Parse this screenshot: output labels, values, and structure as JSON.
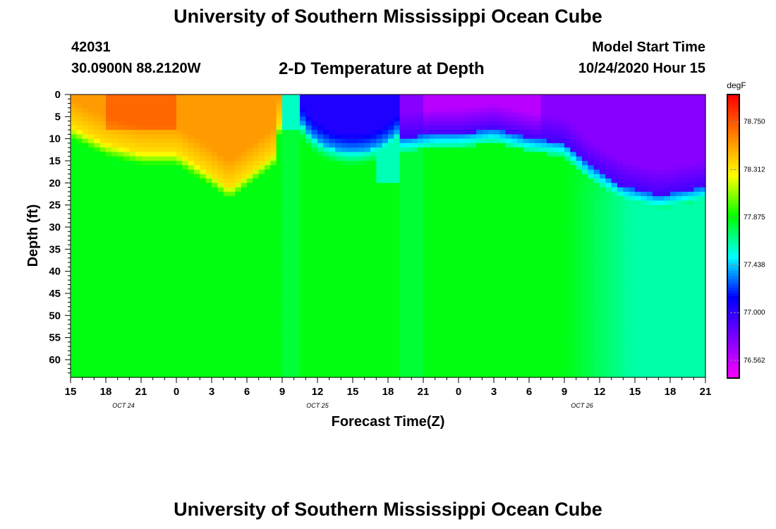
{
  "header": {
    "title": "University of Southern Mississippi Ocean Cube",
    "station_id": "42031",
    "station_coords": "30.0900N 88.2120W",
    "plot_title": "2-D Temperature at Depth",
    "model_start_label": "Model Start Time",
    "model_start_value": "10/24/2020 Hour 15"
  },
  "footer": {
    "title": "University of Southern Mississippi Ocean Cube"
  },
  "chart_data": {
    "type": "heatmap",
    "title": "2-D Temperature at Depth",
    "xlabel": "Forecast Time(Z)",
    "ylabel": "Depth (ft)",
    "x_tick_labels": [
      "15",
      "18",
      "21",
      "0",
      "3",
      "6",
      "9",
      "12",
      "15",
      "18",
      "21",
      "0",
      "3",
      "6",
      "9",
      "12",
      "15",
      "18",
      "21"
    ],
    "x_date_labels": [
      {
        "label": "OCT 24",
        "at_tick": 1.5
      },
      {
        "label": "OCT 25",
        "at_tick": 7
      },
      {
        "label": "OCT 26",
        "at_tick": 14.5
      }
    ],
    "x_range_hours": [
      0,
      54
    ],
    "y_tick_labels": [
      "0",
      "5",
      "10",
      "15",
      "20",
      "25",
      "30",
      "35",
      "40",
      "45",
      "50",
      "55",
      "60"
    ],
    "ylim": [
      0,
      64
    ],
    "y_inverted": true,
    "colorbar": {
      "unit": "degF",
      "tick_values": [
        78.75,
        78.312,
        77.875,
        77.438,
        77.0,
        76.562
      ],
      "tick_labels": [
        "78.750",
        "78.312",
        "77.875",
        "77.438",
        "77.000",
        "76.562"
      ],
      "range": [
        76.4,
        79.0
      ],
      "colors": [
        "#ff00ff",
        "#7d00ff",
        "#0000ff",
        "#00ffff",
        "#00ff00",
        "#ffff00",
        "#ff8000",
        "#ff0000"
      ]
    },
    "field": {
      "background_value": 77.86,
      "surface_warm_layer": [
        {
          "hour": 0,
          "depth": 7
        },
        {
          "hour": 3,
          "depth": 11
        },
        {
          "hour": 6,
          "depth": 13
        },
        {
          "hour": 9,
          "depth": 13
        },
        {
          "hour": 12,
          "depth": 18
        },
        {
          "hour": 13.5,
          "depth": 21
        },
        {
          "hour": 15,
          "depth": 18
        },
        {
          "hour": 17.5,
          "depth": 13
        },
        {
          "hour": 18,
          "depth": 0
        }
      ],
      "cold_bubble": {
        "hour_start": 18.5,
        "hour_end": 28,
        "center_hour": 24,
        "max_depth": 11
      },
      "cold_layer": [
        {
          "hour": 28.5,
          "depth": 10
        },
        {
          "hour": 31,
          "depth": 9
        },
        {
          "hour": 33,
          "depth": 9
        },
        {
          "hour": 36,
          "depth": 8
        },
        {
          "hour": 39,
          "depth": 10
        },
        {
          "hour": 42,
          "depth": 11
        },
        {
          "hour": 44,
          "depth": 16
        },
        {
          "hour": 47,
          "depth": 21
        },
        {
          "hour": 50,
          "depth": 23
        },
        {
          "hour": 54,
          "depth": 21
        }
      ],
      "cool_lower_region_start_hour": 42
    }
  }
}
